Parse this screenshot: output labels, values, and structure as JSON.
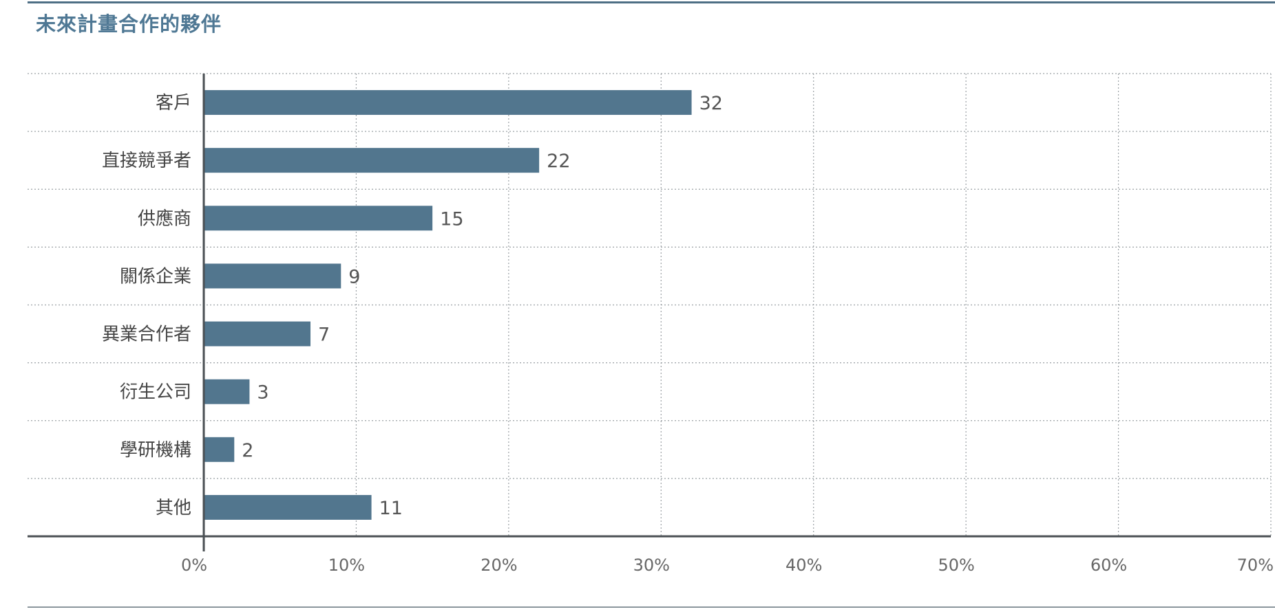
{
  "chart_data": {
    "type": "bar",
    "orientation": "horizontal",
    "title": "未來計畫合作的夥伴",
    "categories": [
      "客戶",
      "直接競爭者",
      "供應商",
      "關係企業",
      "異業合作者",
      "衍生公司",
      "學研機構",
      "其他"
    ],
    "values": [
      32,
      22,
      15,
      9,
      7,
      3,
      2,
      11
    ],
    "value_labels": [
      "32",
      "22",
      "15",
      "9",
      "7",
      "3",
      "2",
      "11"
    ],
    "xlim": [
      0,
      70
    ],
    "x_ticks": [
      0,
      10,
      20,
      30,
      40,
      50,
      60,
      70
    ],
    "x_tick_labels": [
      "0%",
      "10%",
      "20%",
      "30%",
      "40%",
      "50%",
      "60%",
      "70%"
    ],
    "xlabel": "",
    "ylabel": "",
    "grid": true,
    "bar_color": "#52768e"
  }
}
